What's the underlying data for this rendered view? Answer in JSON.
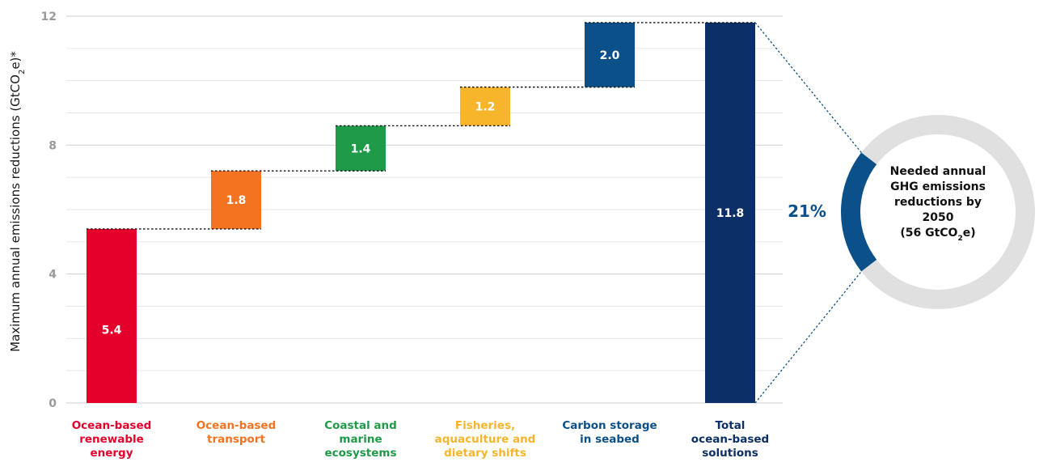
{
  "chart_data": {
    "type": "bar",
    "subtype": "waterfall",
    "categories": [
      "Ocean-based renewable energy",
      "Ocean-based transport",
      "Coastal and marine ecosystems",
      "Fisheries, aquaculture and dietary shifts",
      "Carbon storage in seabed",
      "Total ocean-based solutions"
    ],
    "category_lines": [
      [
        "Ocean-based",
        "renewable",
        "energy"
      ],
      [
        "Ocean-based",
        "transport"
      ],
      [
        "Coastal and",
        "marine",
        "ecosystems"
      ],
      [
        "Fisheries,",
        "aquaculture and",
        "dietary shifts"
      ],
      [
        "Carbon storage",
        "in seabed"
      ],
      [
        "Total",
        "ocean-based",
        "solutions"
      ]
    ],
    "values": [
      5.4,
      1.8,
      1.4,
      1.2,
      2.0,
      11.8
    ],
    "value_labels": [
      "5.4",
      "1.8",
      "1.4",
      "1.2",
      "2.0",
      "11.8"
    ],
    "is_total": [
      false,
      false,
      false,
      false,
      false,
      true
    ],
    "colors": [
      "#e4002b",
      "#f47321",
      "#1f9a48",
      "#f7b52c",
      "#0b5088",
      "#0b2f66"
    ],
    "ylabel": "Maximum annual emissions reductions (GtCO2e)*",
    "ylabel_parts": [
      "Maximum annual emissions reductions (GtCO",
      "2",
      "e)*"
    ],
    "ylim": [
      0,
      12
    ],
    "yticks": [
      0,
      4,
      8,
      12
    ],
    "grid": true,
    "donut": {
      "percent": 21,
      "percent_label": "21%",
      "accent_color": "#0b5088",
      "track_color": "#e0e0e0",
      "label_lines": [
        "Needed annual",
        "GHG emissions",
        "reductions by",
        "2050"
      ],
      "label_last": [
        "(56 GtCO",
        "2",
        "e)"
      ]
    }
  }
}
